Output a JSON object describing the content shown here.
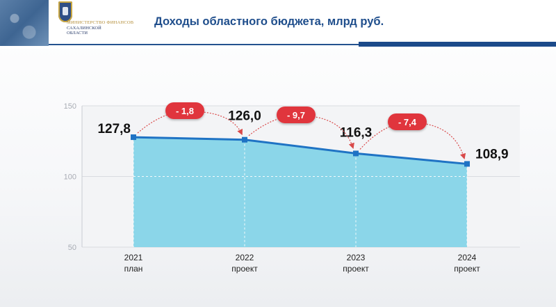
{
  "header": {
    "title": "Доходы областного бюджета, млрд руб.",
    "ministry_line1": "МИНИСТЕРСТВО ФИНАНСОВ",
    "ministry_line2": "САХАЛИНСКОЙ",
    "ministry_line3": "ОБЛАСТИ"
  },
  "chart_data": {
    "type": "area",
    "x": [
      "2021",
      "2022",
      "2023",
      "2024"
    ],
    "x_sublabels": [
      "план",
      "проект",
      "проект",
      "проект"
    ],
    "values": [
      127.8,
      126.0,
      116.3,
      108.9
    ],
    "value_labels": [
      "127,8",
      "126,0",
      "116,3",
      "108,9"
    ],
    "changes": [
      "- 1,8",
      "- 9,7",
      "- 7,4"
    ],
    "ylim": [
      50,
      150
    ],
    "yticks": [
      50,
      100,
      150
    ],
    "grid": "horizontal",
    "colors": {
      "area": "#7fd3e8",
      "line": "#1f73c4",
      "badge": "#e0353d",
      "arrow": "#d94a4a"
    }
  }
}
